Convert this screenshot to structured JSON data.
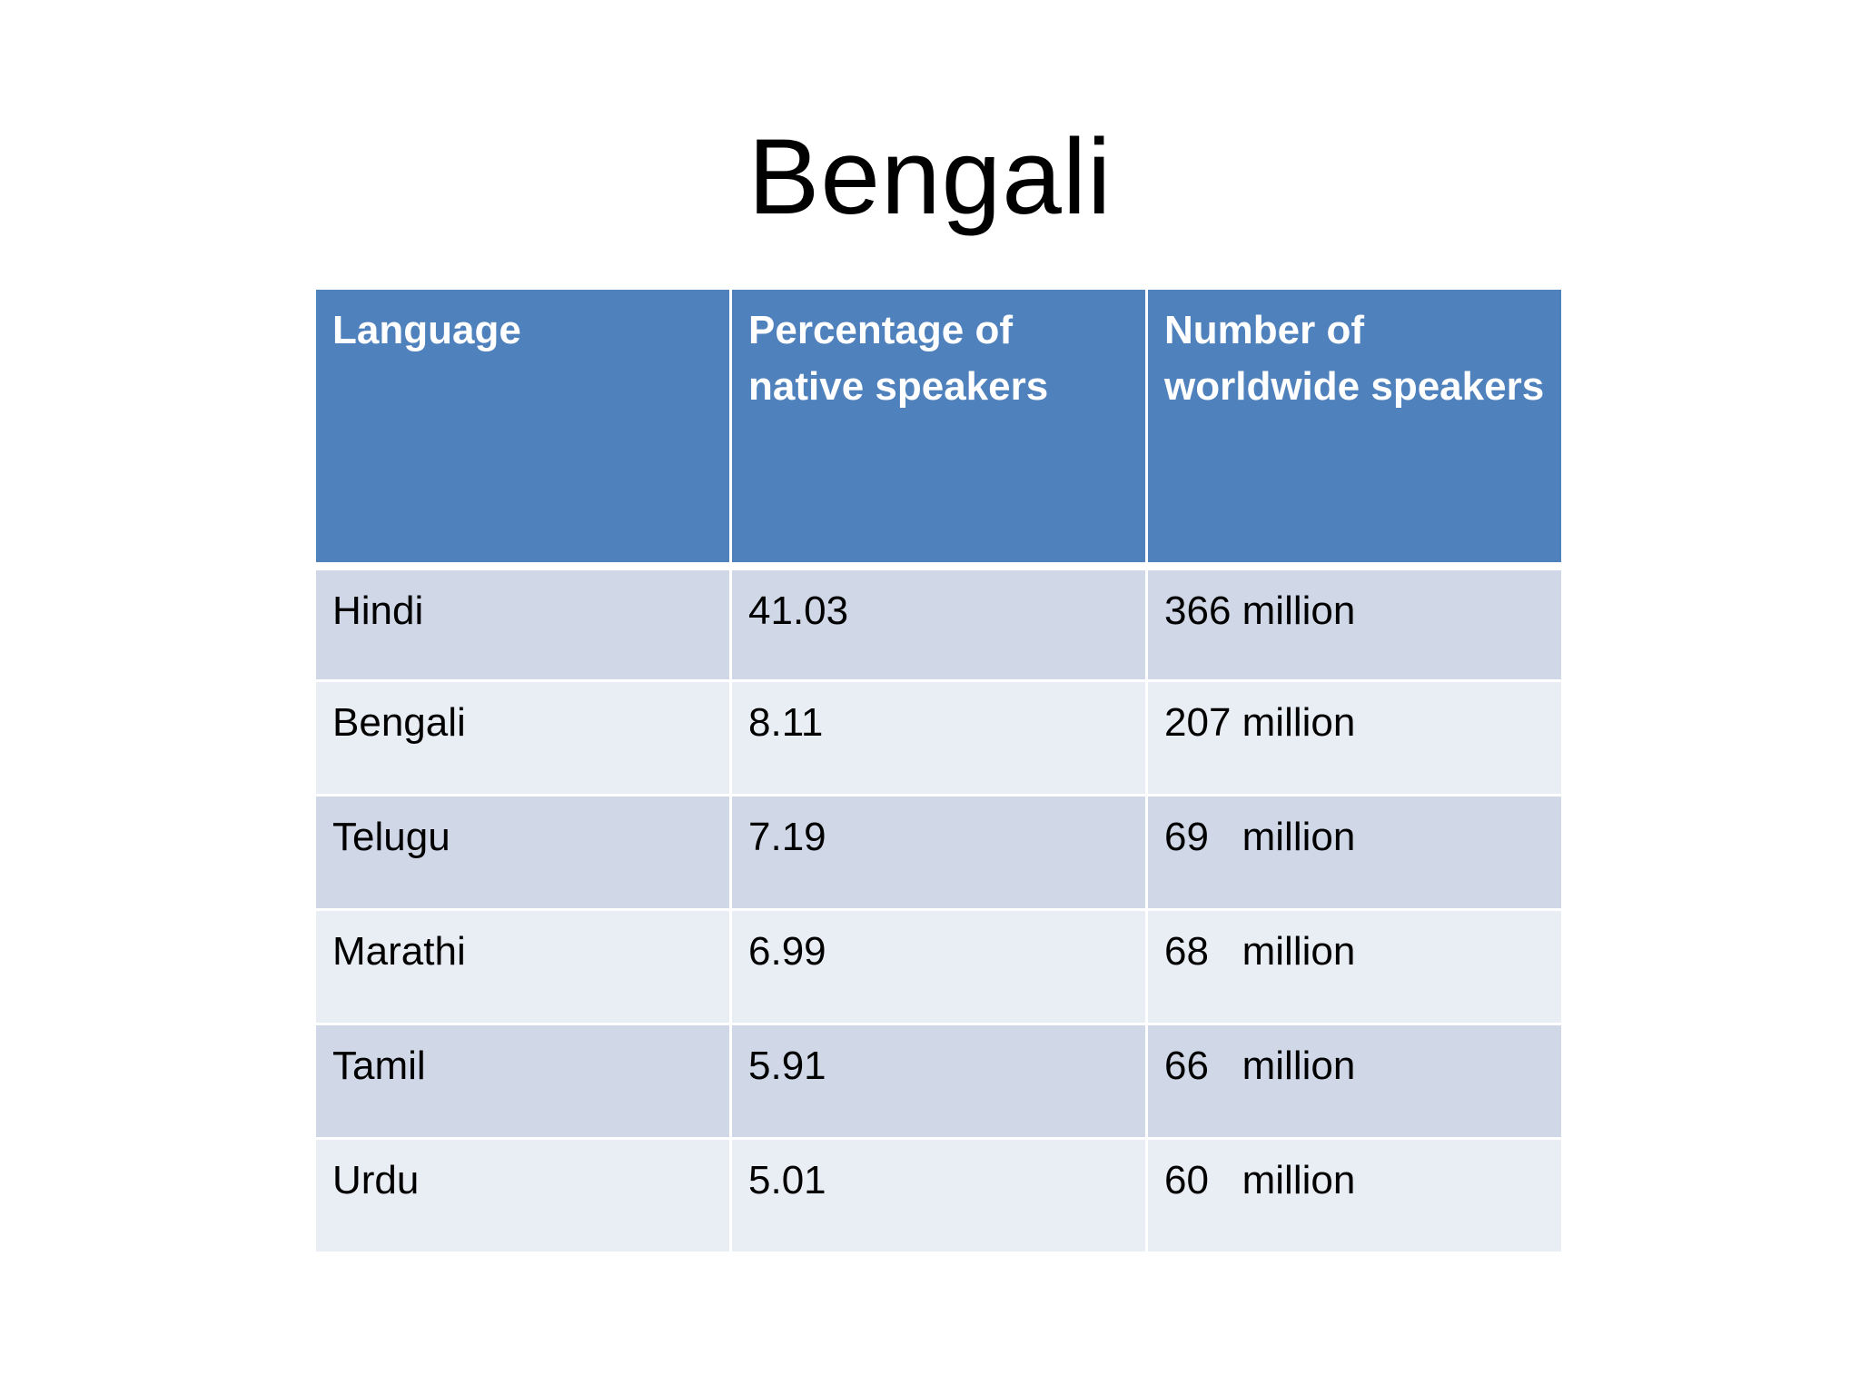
{
  "slide": {
    "title": "Bengali"
  },
  "table": {
    "headers": [
      "Language",
      "Percentage of native speakers",
      "Number of worldwide speakers"
    ],
    "rows": [
      {
        "language": "Hindi",
        "percentage": "41.03",
        "speakers": "366 million"
      },
      {
        "language": "Bengali",
        "percentage": "8.11",
        "speakers": "207 million"
      },
      {
        "language": "Telugu",
        "percentage": "7.19",
        "speakers": "69   million"
      },
      {
        "language": "Marathi",
        "percentage": "6.99",
        "speakers": "68   million"
      },
      {
        "language": "Tamil",
        "percentage": "5.91",
        "speakers": "66   million"
      },
      {
        "language": "Urdu",
        "percentage": "5.01",
        "speakers": "60   million"
      }
    ]
  },
  "colors": {
    "header_background": "#4f81bd",
    "row_band_dark": "#d0d8e8",
    "row_band_light": "#e9edf4"
  }
}
